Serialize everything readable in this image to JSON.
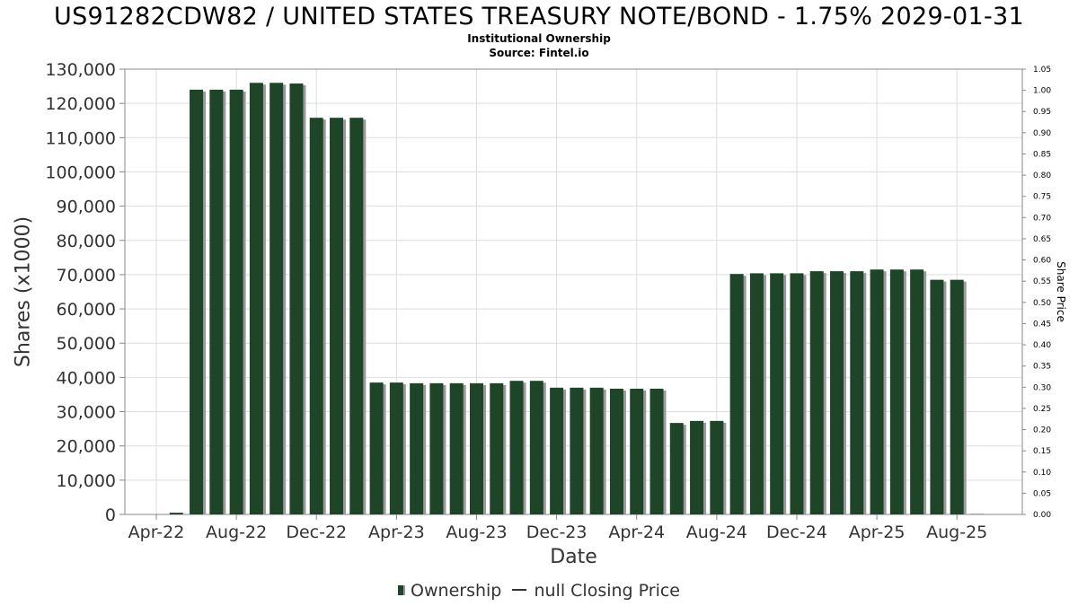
{
  "header": {
    "title": "US91282CDW82 / UNITED STATES TREASURY NOTE/BOND - 1.75% 2029-01-31",
    "subtitle_line1": "Institutional Ownership",
    "subtitle_line2": "Source: Fintel.io"
  },
  "legend": {
    "ownership_label": "Ownership",
    "price_label": "null Closing Price"
  },
  "colors": {
    "bar": "#1f4529",
    "bar_shadow": "#9a9a9a",
    "grid": "#dddddd",
    "axis": "#888888"
  },
  "chart_data": {
    "type": "bar",
    "xlabel": "Date",
    "ylabel": "Shares (x1000)",
    "y2label": "Share Price",
    "ylim": [
      0,
      130000
    ],
    "y2lim": [
      0,
      1.05
    ],
    "grid": true,
    "legend_position": "bottom",
    "x_tick_labels": [
      "Apr-22",
      "Aug-22",
      "Dec-22",
      "Apr-23",
      "Aug-23",
      "Dec-23",
      "Apr-24",
      "Aug-24",
      "Dec-24",
      "Apr-25",
      "Aug-25"
    ],
    "y_tick_labels": [
      "0",
      "10,000",
      "20,000",
      "30,000",
      "40,000",
      "50,000",
      "60,000",
      "70,000",
      "80,000",
      "90,000",
      "100,000",
      "110,000",
      "120,000",
      "130,000"
    ],
    "y2_tick_labels": [
      "0.00",
      "0.05",
      "0.10",
      "0.15",
      "0.20",
      "0.25",
      "0.30",
      "0.35",
      "0.40",
      "0.45",
      "0.50",
      "0.55",
      "0.60",
      "0.65",
      "0.70",
      "0.75",
      "0.80",
      "0.85",
      "0.90",
      "0.95",
      "1.00",
      "1.05"
    ],
    "series": [
      {
        "name": "Ownership",
        "categories": [
          "2022-04",
          "2022-05",
          "2022-06",
          "2022-07",
          "2022-08",
          "2022-09",
          "2022-10",
          "2022-11",
          "2022-12",
          "2023-01",
          "2023-02",
          "2023-03",
          "2023-04",
          "2023-05",
          "2023-06",
          "2023-07",
          "2023-08",
          "2023-09",
          "2023-10",
          "2023-11",
          "2023-12",
          "2024-01",
          "2024-02",
          "2024-03",
          "2024-04",
          "2024-05",
          "2024-06",
          "2024-07",
          "2024-08",
          "2024-09",
          "2024-10",
          "2024-11",
          "2024-12",
          "2025-01",
          "2025-02",
          "2025-03",
          "2025-04",
          "2025-05",
          "2025-06",
          "2025-07",
          "2025-08",
          "2025-09"
        ],
        "values": [
          0,
          500,
          124000,
          124000,
          124000,
          126000,
          126000,
          125800,
          115800,
          115800,
          115800,
          38500,
          38500,
          38300,
          38300,
          38300,
          38300,
          38300,
          39000,
          39000,
          37000,
          37000,
          37000,
          36700,
          36700,
          36700,
          26700,
          27300,
          27300,
          70200,
          70400,
          70400,
          70400,
          71000,
          71000,
          71000,
          71500,
          71500,
          71500,
          68500,
          68500,
          100
        ]
      }
    ]
  }
}
